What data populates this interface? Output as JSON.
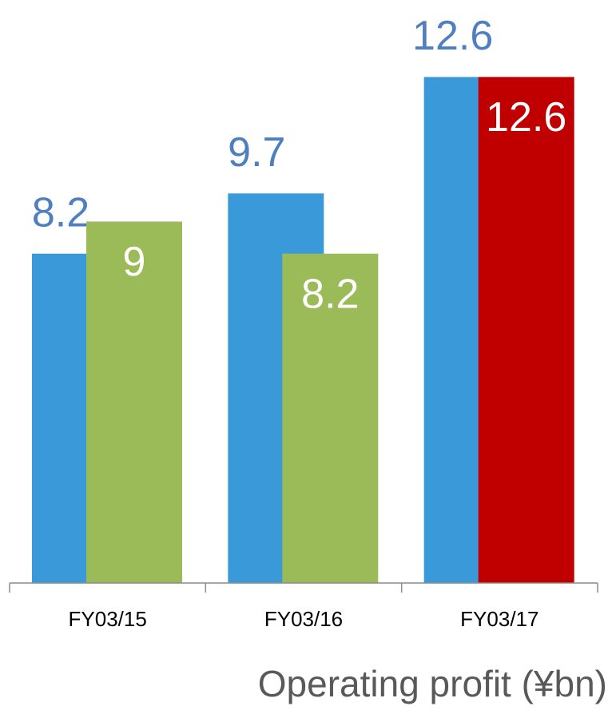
{
  "chart_data": {
    "type": "bar",
    "xlabel": "Operating profit (¥bn)",
    "categories": [
      "FY03/15",
      "FY03/16",
      "FY03/17"
    ],
    "series": [
      {
        "color": "#3a9ad9",
        "label_color": "#4f7fbf",
        "values": [
          8.2,
          9.7,
          12.6
        ]
      },
      {
        "colors": [
          "#9bbb59",
          "#9bbb59",
          "#c00000"
        ],
        "label_color": "#ffffff",
        "values": [
          9.0,
          8.2,
          12.6
        ]
      }
    ],
    "ylim": [
      0,
      14
    ]
  }
}
